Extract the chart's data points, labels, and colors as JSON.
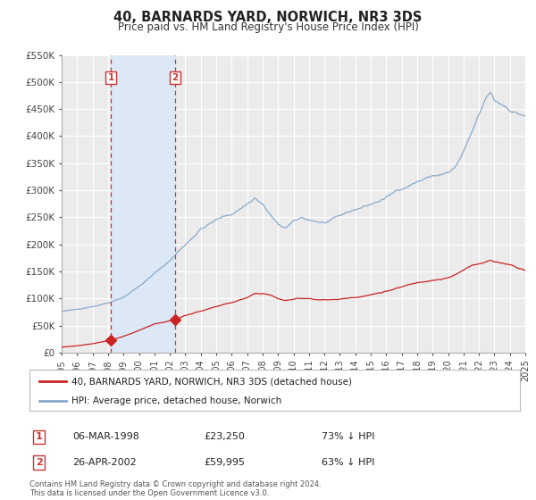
{
  "title": "40, BARNARDS YARD, NORWICH, NR3 3DS",
  "subtitle": "Price paid vs. HM Land Registry's House Price Index (HPI)",
  "ylim": [
    0,
    550000
  ],
  "xlim": [
    1995.0,
    2025.0
  ],
  "ytick_vals": [
    0,
    50000,
    100000,
    150000,
    200000,
    250000,
    300000,
    350000,
    400000,
    450000,
    500000,
    550000
  ],
  "ytick_labels": [
    "£0",
    "£50K",
    "£100K",
    "£150K",
    "£200K",
    "£250K",
    "£300K",
    "£350K",
    "£400K",
    "£450K",
    "£500K",
    "£550K"
  ],
  "xtick_vals": [
    1995,
    1996,
    1997,
    1998,
    1999,
    2000,
    2001,
    2002,
    2003,
    2004,
    2005,
    2006,
    2007,
    2008,
    2009,
    2010,
    2011,
    2012,
    2013,
    2014,
    2015,
    2016,
    2017,
    2018,
    2019,
    2020,
    2021,
    2022,
    2023,
    2024,
    2025
  ],
  "background_color": "#ffffff",
  "plot_bg_color": "#ebebeb",
  "grid_color": "#ffffff",
  "hpi_color": "#88aacc",
  "price_color": "#cc2222",
  "sale1_date": 1998.18,
  "sale1_price": 23250,
  "sale2_date": 2002.32,
  "sale2_price": 59995,
  "vline_color": "#cc3333",
  "shade_color": "#dce8f5",
  "legend_label1": "40, BARNARDS YARD, NORWICH, NR3 3DS (detached house)",
  "legend_label2": "HPI: Average price, detached house, Norwich",
  "table_row1": [
    "1",
    "06-MAR-1998",
    "£23,250",
    "73% ↓ HPI"
  ],
  "table_row2": [
    "2",
    "26-APR-2002",
    "£59,995",
    "63% ↓ HPI"
  ],
  "footer1": "Contains HM Land Registry data © Crown copyright and database right 2024.",
  "footer2": "This data is licensed under the Open Government Licence v3.0."
}
